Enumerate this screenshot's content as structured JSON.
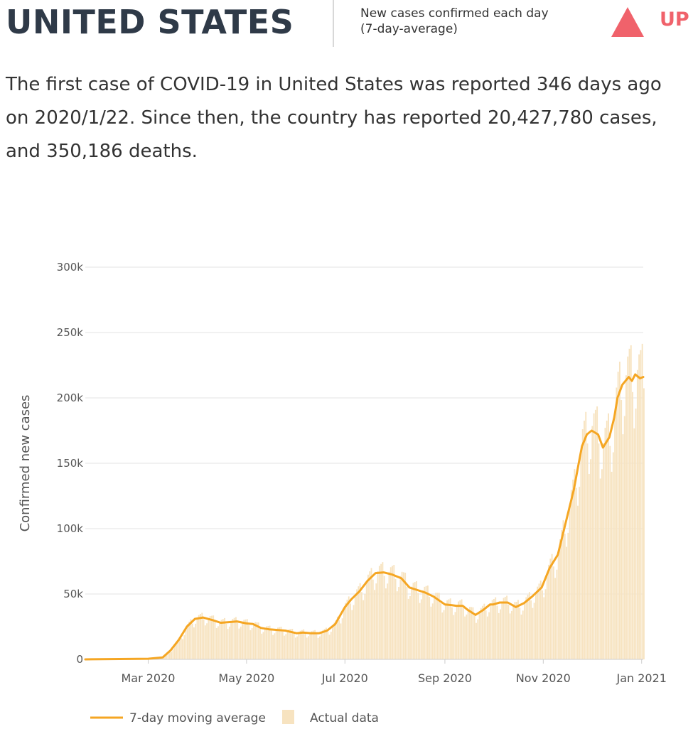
{
  "header": {
    "country": "UNITED STATES",
    "metric_line1": "New cases confirmed each day",
    "metric_line2": "(7-day-average)",
    "trend_label": "UP",
    "trend_color": "#f0626b",
    "trend_icon": "up-triangle-icon"
  },
  "summary": "The first case of COVID-19 in United States was reported 346 days ago on 2020/1/22. Since then, the country has reported 20,427,780 cases, and 350,186 deaths.",
  "colors": {
    "line": "#f5a623",
    "bars": "#f7e3c0",
    "grid": "#e3e3e3",
    "axis_text": "#555555"
  },
  "chart_data": {
    "type": "line",
    "ylabel": "Confirmed new cases",
    "ylim": [
      0,
      300000
    ],
    "yticks": [
      0,
      50000,
      100000,
      150000,
      200000,
      250000,
      300000
    ],
    "ytick_labels": [
      "0",
      "50k",
      "100k",
      "150k",
      "200k",
      "250k",
      "300k"
    ],
    "xlim": [
      "2020-01-22",
      "2021-01-02"
    ],
    "xticks": [
      "2020-03-01",
      "2020-05-01",
      "2020-07-01",
      "2020-09-01",
      "2020-11-01",
      "2021-01-01"
    ],
    "xtick_labels": [
      "Mar 2020",
      "May 2020",
      "Jul 2020",
      "Sep 2020",
      "Nov 2020",
      "Jan 2021"
    ],
    "grid": "horizontal",
    "legend_position": "bottom-left",
    "series": [
      {
        "name": "7-day moving average",
        "type": "line",
        "x": [
          "2020-01-22",
          "2020-03-01",
          "2020-03-10",
          "2020-03-15",
          "2020-03-20",
          "2020-03-25",
          "2020-03-30",
          "2020-04-04",
          "2020-04-10",
          "2020-04-15",
          "2020-04-20",
          "2020-04-25",
          "2020-05-01",
          "2020-05-05",
          "2020-05-10",
          "2020-05-15",
          "2020-05-20",
          "2020-05-25",
          "2020-06-01",
          "2020-06-05",
          "2020-06-10",
          "2020-06-15",
          "2020-06-20",
          "2020-06-25",
          "2020-07-01",
          "2020-07-05",
          "2020-07-10",
          "2020-07-15",
          "2020-07-20",
          "2020-07-25",
          "2020-07-30",
          "2020-08-05",
          "2020-08-10",
          "2020-08-15",
          "2020-08-20",
          "2020-08-25",
          "2020-09-01",
          "2020-09-05",
          "2020-09-08",
          "2020-09-12",
          "2020-09-15",
          "2020-09-20",
          "2020-09-25",
          "2020-09-29",
          "2020-10-01",
          "2020-10-05",
          "2020-10-10",
          "2020-10-15",
          "2020-10-20",
          "2020-10-25",
          "2020-10-31",
          "2020-11-05",
          "2020-11-10",
          "2020-11-15",
          "2020-11-18",
          "2020-11-20",
          "2020-11-23",
          "2020-11-25",
          "2020-11-28",
          "2020-12-01",
          "2020-12-05",
          "2020-12-08",
          "2020-12-12",
          "2020-12-15",
          "2020-12-17",
          "2020-12-20",
          "2020-12-22",
          "2020-12-24",
          "2020-12-26",
          "2020-12-28",
          "2020-12-31",
          "2021-01-02"
        ],
        "y": [
          0,
          500,
          1500,
          7000,
          15000,
          25000,
          31000,
          32000,
          30000,
          28000,
          28500,
          29000,
          27500,
          27000,
          24000,
          23000,
          22500,
          22000,
          20000,
          20500,
          20000,
          20000,
          22000,
          27000,
          40000,
          46000,
          52000,
          60000,
          66000,
          66500,
          65000,
          62000,
          55000,
          53000,
          51000,
          48000,
          42000,
          41500,
          41000,
          41000,
          38000,
          34000,
          38000,
          42000,
          42000,
          43500,
          43500,
          40000,
          43000,
          48000,
          55000,
          70000,
          80000,
          105000,
          120000,
          130000,
          150000,
          163000,
          172000,
          175000,
          172000,
          162000,
          170000,
          185000,
          200000,
          210000,
          213000,
          216000,
          213000,
          218000,
          215000,
          216000
        ]
      },
      {
        "name": "Actual data",
        "type": "bar"
      }
    ]
  },
  "legend": {
    "line_label": "7-day moving average",
    "bar_label": "Actual data"
  }
}
